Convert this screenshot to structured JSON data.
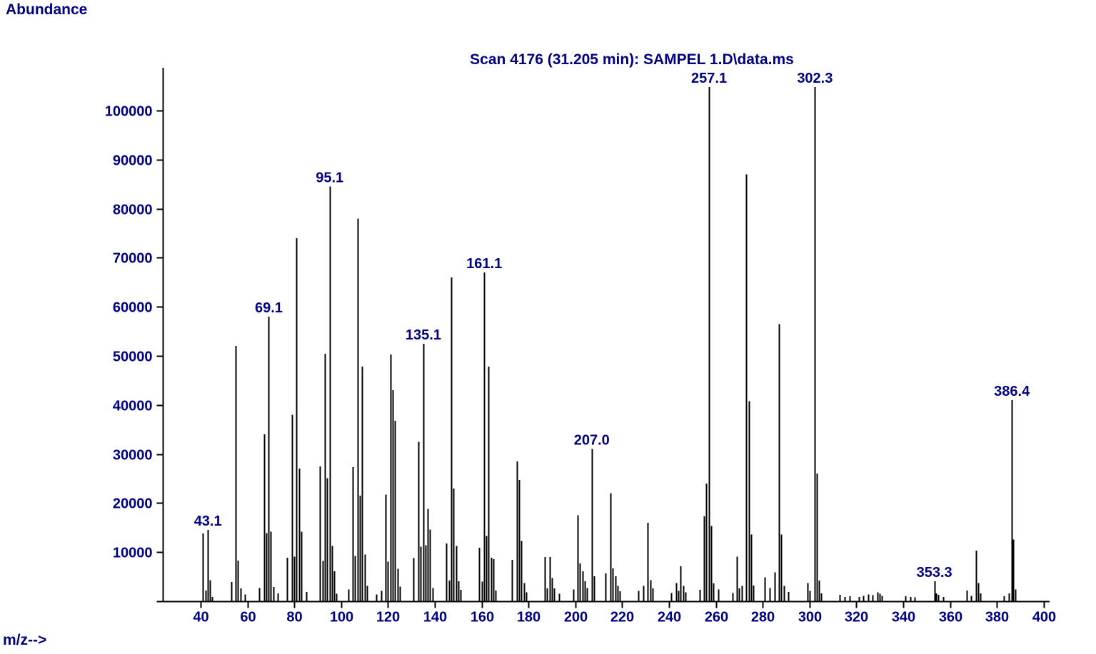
{
  "chart_data": {
    "type": "bar",
    "title": "Scan 4176 (31.205 min): SAMPEL 1.D\\data.ms",
    "xlabel": "m/z-->",
    "ylabel": "Abundance",
    "xlim": [
      24,
      412
    ],
    "ylim": [
      0,
      108000
    ],
    "grid": false,
    "x_ticks": [
      40,
      60,
      80,
      100,
      120,
      140,
      160,
      180,
      200,
      220,
      240,
      260,
      280,
      300,
      320,
      340,
      360,
      380,
      400
    ],
    "y_ticks": [
      0,
      10000,
      20000,
      30000,
      40000,
      50000,
      60000,
      70000,
      80000,
      90000,
      100000
    ],
    "colors": {
      "peak": "#000000",
      "axis": "#000000",
      "text": "#000080",
      "background": "#ffffff"
    },
    "peaks": [
      [
        41,
        13800
      ],
      [
        42,
        2200
      ],
      [
        43.1,
        14500
      ],
      [
        44,
        4300
      ],
      [
        45,
        900
      ],
      [
        53,
        3900
      ],
      [
        55,
        52000
      ],
      [
        56,
        8300
      ],
      [
        57,
        2600
      ],
      [
        59,
        1400
      ],
      [
        65,
        2700
      ],
      [
        67,
        34000
      ],
      [
        68,
        13900
      ],
      [
        69.1,
        58000
      ],
      [
        70,
        14200
      ],
      [
        71,
        2900
      ],
      [
        73,
        1600
      ],
      [
        77,
        8900
      ],
      [
        79,
        38000
      ],
      [
        80,
        9100
      ],
      [
        81,
        74000
      ],
      [
        82,
        27000
      ],
      [
        83,
        14200
      ],
      [
        85,
        1900
      ],
      [
        91,
        27500
      ],
      [
        92,
        8200
      ],
      [
        93,
        50400
      ],
      [
        94,
        25100
      ],
      [
        95.1,
        84500
      ],
      [
        96,
        11300
      ],
      [
        97,
        6100
      ],
      [
        98,
        1500
      ],
      [
        103,
        2400
      ],
      [
        105,
        27300
      ],
      [
        106,
        9200
      ],
      [
        107,
        78000
      ],
      [
        108,
        21500
      ],
      [
        109,
        47800
      ],
      [
        110,
        9500
      ],
      [
        111,
        3100
      ],
      [
        115,
        1400
      ],
      [
        117,
        2100
      ],
      [
        119,
        21700
      ],
      [
        120,
        8100
      ],
      [
        121,
        50300
      ],
      [
        122,
        43000
      ],
      [
        123,
        36800
      ],
      [
        124,
        6600
      ],
      [
        125,
        3000
      ],
      [
        131,
        8800
      ],
      [
        133,
        32500
      ],
      [
        134,
        11100
      ],
      [
        135.1,
        52500
      ],
      [
        136,
        11400
      ],
      [
        137,
        18800
      ],
      [
        138,
        14600
      ],
      [
        139,
        2700
      ],
      [
        145,
        11800
      ],
      [
        146,
        4200
      ],
      [
        147,
        66000
      ],
      [
        148,
        23000
      ],
      [
        149,
        11300
      ],
      [
        150,
        4100
      ],
      [
        151,
        2300
      ],
      [
        159,
        10900
      ],
      [
        160,
        4000
      ],
      [
        161.1,
        67000
      ],
      [
        162,
        13300
      ],
      [
        163,
        47800
      ],
      [
        164,
        8900
      ],
      [
        165,
        8600
      ],
      [
        166,
        2200
      ],
      [
        173,
        8400
      ],
      [
        175,
        28500
      ],
      [
        176,
        24700
      ],
      [
        177,
        12300
      ],
      [
        178,
        3700
      ],
      [
        179,
        1800
      ],
      [
        187,
        9000
      ],
      [
        188,
        2600
      ],
      [
        189,
        9000
      ],
      [
        190,
        4700
      ],
      [
        191,
        2600
      ],
      [
        193,
        1500
      ],
      [
        199,
        2400
      ],
      [
        201,
        17500
      ],
      [
        202,
        7700
      ],
      [
        203,
        6100
      ],
      [
        204,
        4100
      ],
      [
        205,
        2700
      ],
      [
        207,
        31000
      ],
      [
        208,
        5100
      ],
      [
        213,
        5700
      ],
      [
        215,
        22000
      ],
      [
        216,
        6700
      ],
      [
        217,
        5100
      ],
      [
        218,
        3100
      ],
      [
        219,
        2000
      ],
      [
        227,
        2100
      ],
      [
        229,
        3100
      ],
      [
        231,
        16000
      ],
      [
        232,
        4300
      ],
      [
        233,
        2600
      ],
      [
        241,
        1700
      ],
      [
        243,
        3700
      ],
      [
        244,
        2100
      ],
      [
        245,
        7100
      ],
      [
        246,
        3100
      ],
      [
        247,
        1800
      ],
      [
        253,
        2300
      ],
      [
        255,
        17300
      ],
      [
        256,
        24000
      ],
      [
        257.1,
        104800
      ],
      [
        258,
        15300
      ],
      [
        259,
        3600
      ],
      [
        261,
        2400
      ],
      [
        267,
        1700
      ],
      [
        269,
        9100
      ],
      [
        270,
        2600
      ],
      [
        271,
        3100
      ],
      [
        273,
        87000
      ],
      [
        274,
        40800
      ],
      [
        275,
        13600
      ],
      [
        276,
        3200
      ],
      [
        281,
        4900
      ],
      [
        283,
        2700
      ],
      [
        285,
        5900
      ],
      [
        287,
        56500
      ],
      [
        288,
        13600
      ],
      [
        289,
        3100
      ],
      [
        291,
        1900
      ],
      [
        299,
        3700
      ],
      [
        300,
        2100
      ],
      [
        302.3,
        104800
      ],
      [
        303,
        26000
      ],
      [
        304,
        4200
      ],
      [
        305,
        1600
      ],
      [
        313,
        1300
      ],
      [
        315,
        900
      ],
      [
        317,
        1000
      ],
      [
        321,
        900
      ],
      [
        323,
        1100
      ],
      [
        325,
        1400
      ],
      [
        327,
        1200
      ],
      [
        329,
        1800
      ],
      [
        330,
        1500
      ],
      [
        331,
        1100
      ],
      [
        341,
        1000
      ],
      [
        343,
        900
      ],
      [
        345,
        800
      ],
      [
        353.3,
        4100
      ],
      [
        354,
        1600
      ],
      [
        355,
        1300
      ],
      [
        357,
        900
      ],
      [
        367,
        2200
      ],
      [
        369,
        1100
      ],
      [
        371,
        10300
      ],
      [
        372,
        3700
      ],
      [
        373,
        1600
      ],
      [
        383,
        1000
      ],
      [
        385,
        1600
      ],
      [
        386.4,
        41000
      ],
      [
        387,
        12600
      ],
      [
        388,
        2400
      ]
    ],
    "peak_labels": [
      {
        "mz": 43.1,
        "text": "43.1"
      },
      {
        "mz": 69.1,
        "text": "69.1"
      },
      {
        "mz": 95.1,
        "text": "95.1"
      },
      {
        "mz": 135.1,
        "text": "135.1"
      },
      {
        "mz": 161.1,
        "text": "161.1"
      },
      {
        "mz": 207,
        "text": "207.0"
      },
      {
        "mz": 257.1,
        "text": "257.1"
      },
      {
        "mz": 302.3,
        "text": "302.3"
      },
      {
        "mz": 353.3,
        "text": "353.3"
      },
      {
        "mz": 386.4,
        "text": "386.4"
      }
    ]
  }
}
